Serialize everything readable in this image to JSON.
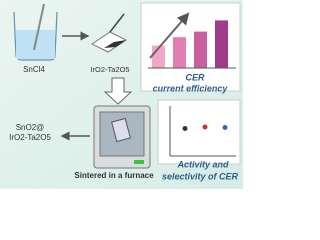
{
  "labels": {
    "precursor": "SnCl4",
    "electrode": "IrO2-Ta2O5",
    "product_line1": "SnO2@",
    "product_line2": "IrO2-Ta2O5",
    "furnace": "Sintered in a furnace",
    "efficiency_line1": "CER",
    "efficiency_line2": "current efficiency",
    "activity_line1": "Activity and",
    "activity_line2": "selectivity of CER"
  },
  "inset_bars": {
    "values": [
      40,
      55,
      65,
      85
    ],
    "colors": [
      "#f4a6c6",
      "#e37fb0",
      "#c85fa0",
      "#a03a8a"
    ],
    "ylim": [
      0,
      100
    ]
  },
  "inset_points": {
    "values": [
      55,
      58,
      57
    ],
    "ylim": [
      0,
      100
    ]
  }
}
